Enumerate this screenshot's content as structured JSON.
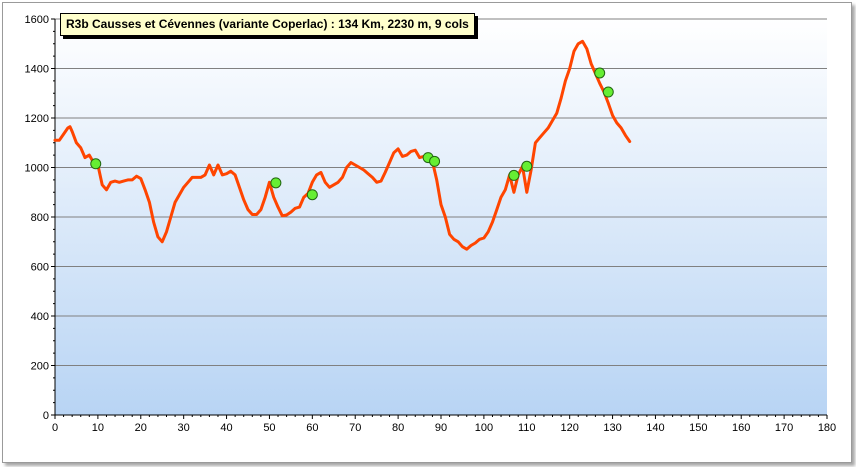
{
  "chart_data": {
    "type": "line",
    "title": "R3b Causses  et Cévennes (variante Coperlac) : 134  Km, 2230  m, 9 cols",
    "xlabel": "",
    "ylabel": "",
    "xlim": [
      0,
      180
    ],
    "ylim": [
      0,
      1600
    ],
    "x_ticks": [
      0,
      10,
      20,
      30,
      40,
      50,
      60,
      70,
      80,
      90,
      100,
      110,
      120,
      130,
      140,
      150,
      160,
      170,
      180
    ],
    "y_ticks": [
      0,
      200,
      400,
      600,
      800,
      1000,
      1200,
      1400,
      1600
    ],
    "grid": "horizontal",
    "colors": {
      "line": "#ff4500",
      "marker": "#66ee33",
      "plot_bg_top": "#ffffff",
      "plot_bg_bottom": "#b8d4f4",
      "title_bg": "#ffffcc"
    },
    "series": [
      {
        "type": "line",
        "x": [
          0,
          1,
          2,
          3,
          3.5,
          4,
          5,
          6,
          7,
          8,
          9,
          10,
          11,
          12,
          13,
          14,
          15,
          16,
          17,
          18,
          19,
          20,
          21,
          22,
          23,
          24,
          25,
          26,
          27,
          28,
          29,
          30,
          31,
          32,
          33,
          34,
          35,
          36,
          37,
          38,
          39,
          40,
          41,
          42,
          43,
          44,
          45,
          46,
          47,
          48,
          49,
          50,
          51,
          52,
          53,
          54,
          55,
          56,
          57,
          58,
          59,
          60,
          61,
          62,
          63,
          64,
          65,
          66,
          67,
          68,
          69,
          70,
          71,
          72,
          73,
          74,
          75,
          76,
          77,
          78,
          79,
          80,
          81,
          82,
          83,
          84,
          85,
          86,
          87,
          88,
          89,
          90,
          91,
          92,
          93,
          94,
          95,
          96,
          97,
          98,
          99,
          100,
          101,
          102,
          103,
          104,
          105,
          106,
          107,
          108,
          109,
          110,
          111,
          112,
          113,
          114,
          115,
          116,
          117,
          118,
          119,
          120,
          121,
          122,
          123,
          124,
          125,
          126,
          127,
          128,
          129,
          130,
          131,
          132,
          133,
          134
        ],
        "y": [
          1110,
          1110,
          1135,
          1160,
          1165,
          1145,
          1100,
          1080,
          1040,
          1050,
          1020,
          1010,
          930,
          910,
          940,
          945,
          940,
          945,
          950,
          950,
          965,
          955,
          910,
          860,
          780,
          720,
          700,
          740,
          800,
          860,
          890,
          920,
          940,
          960,
          960,
          960,
          970,
          1010,
          970,
          1010,
          970,
          975,
          985,
          970,
          920,
          870,
          830,
          810,
          810,
          830,
          880,
          940,
          880,
          840,
          805,
          808,
          820,
          835,
          840,
          880,
          895,
          940,
          970,
          980,
          940,
          920,
          930,
          940,
          960,
          1000,
          1020,
          1010,
          1000,
          990,
          975,
          960,
          940,
          945,
          980,
          1020,
          1060,
          1075,
          1045,
          1050,
          1065,
          1070,
          1040,
          1045,
          1040,
          1025,
          950,
          850,
          800,
          730,
          710,
          700,
          680,
          670,
          685,
          695,
          710,
          715,
          740,
          780,
          830,
          880,
          910,
          970,
          900,
          970,
          1005,
          900,
          990,
          1100,
          1120,
          1140,
          1160,
          1190,
          1220,
          1280,
          1350,
          1400,
          1470,
          1500,
          1510,
          1480,
          1420,
          1380,
          1340,
          1305,
          1260,
          1210,
          1180,
          1160,
          1130,
          1105
        ]
      },
      {
        "type": "scatter",
        "x": [
          9.5,
          51.5,
          60,
          87,
          88.5,
          107,
          110,
          127,
          129
        ],
        "y": [
          1015,
          938,
          890,
          1040,
          1025,
          968,
          1005,
          1382,
          1305
        ]
      }
    ]
  }
}
